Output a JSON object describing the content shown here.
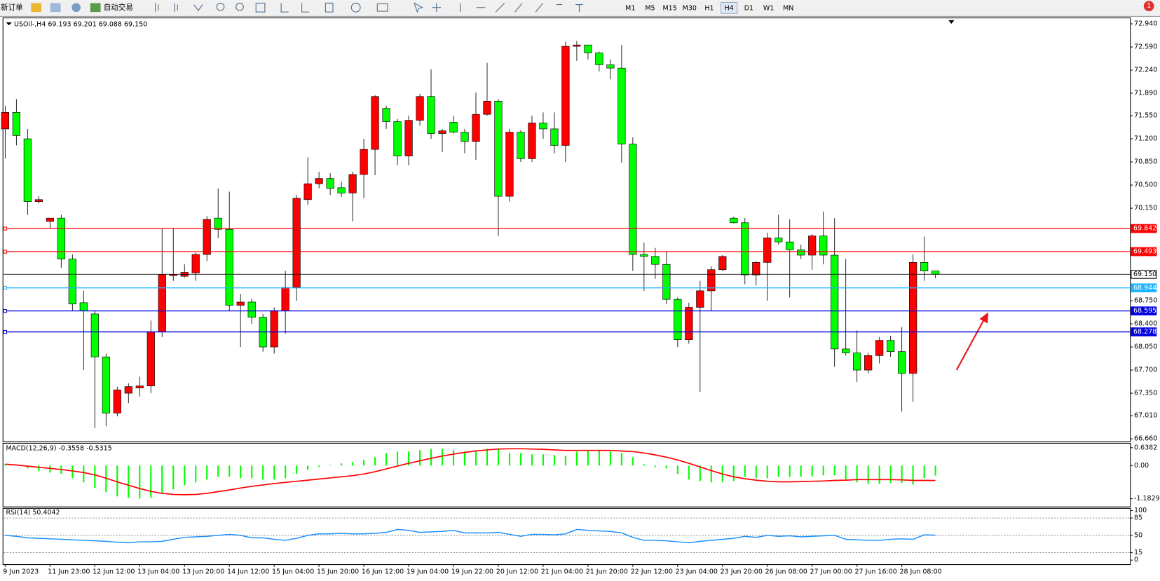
{
  "toolbar": {
    "new_order": "新订单",
    "auto_trading": "自动交易",
    "timeframes": [
      "M1",
      "M5",
      "M15",
      "M30",
      "H1",
      "H4",
      "D1",
      "W1",
      "MN"
    ],
    "selected": "H4",
    "badge": "1"
  },
  "chart_data": [
    {
      "type": "candlestick",
      "title": "USOil-,H4  69.193 69.201 69.088 69.150",
      "categories": [
        "9 Jun 2023",
        null,
        null,
        null,
        "11 Jun 23:00",
        null,
        null,
        null,
        "12 Jun 12:00",
        null,
        null,
        null,
        "13 Jun 04:00",
        null,
        null,
        null,
        "13 Jun 20:00",
        null,
        null,
        null,
        "14 Jun 12:00",
        null,
        null,
        null,
        "15 Jun 04:00",
        null,
        null,
        null,
        "15 Jun 20:00",
        null,
        null,
        null,
        "16 Jun 12:00",
        null,
        null,
        null,
        "19 Jun 04:00",
        null,
        null,
        null,
        "19 Jun 22:00",
        null,
        null,
        null,
        "20 Jun 12:00",
        null,
        null,
        null,
        "21 Jun 04:00",
        null,
        null,
        null,
        "21 Jun 20:00",
        null,
        null,
        null,
        "22 Jun 12:00",
        null,
        null,
        null,
        "23 Jun 04:00",
        null,
        null,
        null,
        "23 Jun 20:00",
        null,
        null,
        null,
        "26 Jun 08:00",
        null,
        null,
        null,
        "27 Jun 00:00",
        null,
        null,
        null,
        "27 Jun 16:00",
        null,
        null,
        null,
        "28 Jun 08:00",
        null,
        null,
        null
      ],
      "open": [
        71.35,
        71.6,
        71.2,
        70.25,
        69.95,
        70.0,
        69.38,
        68.72,
        68.55,
        67.9,
        67.05,
        67.35,
        67.43,
        67.46,
        68.28,
        69.13,
        69.12,
        69.17,
        69.45,
        70.0,
        69.83,
        68.68,
        68.73,
        68.5,
        68.05,
        68.6,
        68.95,
        70.28,
        70.52,
        70.6,
        70.46,
        70.38,
        70.66,
        71.04,
        71.66,
        71.46,
        70.94,
        71.48,
        71.84,
        71.28,
        71.45,
        71.3,
        71.16,
        71.57,
        71.77,
        70.33,
        71.3,
        70.9,
        71.44,
        71.35,
        71.1,
        72.6,
        72.62,
        72.5,
        72.32,
        72.27,
        71.12,
        69.45,
        69.42,
        69.3,
        68.77,
        68.16,
        68.65,
        68.9,
        69.22,
        70.0,
        69.93,
        69.14,
        69.33,
        69.7,
        69.64,
        69.52,
        69.44,
        69.73,
        69.44,
        68.02,
        67.96,
        67.7,
        67.92,
        68.15,
        67.98,
        67.65,
        69.33,
        69.2
      ],
      "high": [
        71.7,
        71.8,
        71.35,
        70.33,
        70.0,
        70.05,
        69.45,
        68.9,
        68.6,
        67.95,
        67.45,
        67.5,
        67.6,
        68.45,
        69.85,
        69.85,
        69.3,
        69.48,
        70.03,
        70.45,
        70.4,
        68.85,
        68.78,
        68.55,
        68.65,
        69.2,
        70.35,
        70.92,
        70.7,
        70.68,
        70.55,
        70.7,
        71.2,
        71.86,
        71.7,
        71.5,
        71.55,
        71.88,
        72.25,
        71.35,
        71.55,
        71.35,
        71.9,
        72.35,
        71.8,
        71.35,
        71.33,
        71.55,
        71.6,
        71.6,
        72.67,
        72.68,
        72.62,
        72.52,
        72.4,
        72.62,
        71.22,
        69.63,
        69.55,
        69.5,
        68.8,
        68.72,
        69.05,
        69.27,
        69.44,
        70.02,
        70.0,
        69.35,
        69.78,
        70.05,
        69.98,
        69.6,
        69.76,
        70.1,
        70.0,
        69.38,
        68.3,
        67.96,
        68.2,
        68.22,
        68.35,
        69.45,
        69.72,
        69.2
      ],
      "low": [
        70.9,
        71.1,
        70.05,
        70.22,
        69.85,
        69.25,
        68.6,
        67.7,
        66.82,
        66.85,
        67.0,
        67.2,
        67.3,
        67.35,
        68.2,
        69.05,
        69.1,
        69.05,
        69.35,
        69.7,
        68.6,
        68.05,
        68.4,
        67.98,
        67.95,
        68.25,
        68.75,
        70.2,
        70.45,
        70.35,
        70.32,
        69.95,
        70.3,
        70.65,
        71.35,
        70.8,
        70.8,
        71.4,
        71.2,
        71.0,
        71.28,
        70.98,
        70.88,
        71.55,
        69.73,
        70.25,
        70.85,
        70.85,
        71.2,
        70.98,
        70.85,
        72.38,
        72.4,
        72.22,
        72.1,
        70.84,
        69.2,
        68.9,
        69.08,
        68.7,
        68.05,
        68.1,
        67.37,
        68.6,
        69.2,
        69.92,
        69.0,
        68.98,
        68.75,
        69.6,
        68.8,
        69.38,
        69.22,
        69.3,
        67.75,
        67.92,
        67.52,
        67.65,
        67.8,
        67.9,
        67.07,
        67.22,
        69.05,
        69.09
      ],
      "close": [
        71.6,
        71.25,
        70.25,
        70.28,
        70.0,
        69.38,
        68.7,
        68.6,
        67.9,
        67.05,
        67.4,
        67.45,
        67.46,
        68.28,
        69.15,
        69.15,
        69.18,
        69.45,
        69.98,
        69.83,
        68.68,
        68.73,
        68.5,
        68.05,
        68.6,
        68.95,
        70.3,
        70.52,
        70.6,
        70.45,
        70.38,
        70.66,
        71.04,
        71.84,
        71.46,
        70.94,
        71.48,
        71.84,
        71.28,
        71.32,
        71.3,
        71.16,
        71.57,
        71.77,
        70.33,
        71.3,
        70.9,
        71.44,
        71.35,
        71.1,
        72.6,
        72.62,
        72.5,
        72.32,
        72.27,
        71.12,
        69.45,
        69.42,
        69.3,
        68.77,
        68.16,
        68.65,
        68.9,
        69.22,
        69.42,
        69.93,
        69.14,
        69.33,
        69.7,
        69.64,
        69.52,
        69.44,
        69.73,
        69.44,
        68.02,
        67.96,
        67.7,
        67.92,
        68.15,
        67.98,
        67.65,
        69.33,
        69.2,
        69.15
      ],
      "up_color": "#ff0000",
      "down_color": "#00ff00",
      "ylim": [
        66.66,
        72.94
      ],
      "yticks": [
        {
          "value": 72.94,
          "label": "72.940"
        },
        {
          "value": 72.59,
          "label": "72.590"
        },
        {
          "value": 72.24,
          "label": "72.240"
        },
        {
          "value": 71.89,
          "label": "71.890"
        },
        {
          "value": 71.55,
          "label": "71.550"
        },
        {
          "value": 71.2,
          "label": "71.200"
        },
        {
          "value": 70.85,
          "label": "70.850"
        },
        {
          "value": 70.5,
          "label": "70.500"
        },
        {
          "value": 70.15,
          "label": "70.150"
        },
        {
          "value": 69.8,
          "label": "69.800"
        },
        {
          "value": 69.45,
          "label": "69.450"
        },
        {
          "value": 68.75,
          "label": "68.750"
        },
        {
          "value": 68.4,
          "label": "68.400"
        },
        {
          "value": 68.05,
          "label": "68.050"
        },
        {
          "value": 67.7,
          "label": "67.700"
        },
        {
          "value": 67.35,
          "label": "67.350"
        },
        {
          "value": 67.01,
          "label": "67.010"
        },
        {
          "value": 66.66,
          "label": "66.660"
        }
      ],
      "price_lines": [
        {
          "value": 69.842,
          "color": "#ff0000"
        },
        {
          "value": 69.493,
          "color": "#ff0000"
        },
        {
          "value": 69.15,
          "label": "69.150",
          "color": "#000000"
        },
        {
          "value": 68.944,
          "color": "#1eb4ff"
        },
        {
          "value": 68.595,
          "color": "#0000e0"
        },
        {
          "value": 68.278,
          "color": "#0000e0"
        }
      ]
    },
    {
      "type": "macd",
      "title": "MACD(12,26,9) -0.3558 -0.5315",
      "histogram": {
        "color": "#00ff00",
        "values": [
          0.05,
          0.0,
          -0.1,
          -0.2,
          -0.25,
          -0.3,
          -0.45,
          -0.6,
          -0.8,
          -0.95,
          -1.1,
          -1.15,
          -1.18,
          -1.15,
          -1.0,
          -0.85,
          -0.7,
          -0.6,
          -0.5,
          -0.4,
          -0.4,
          -0.45,
          -0.45,
          -0.5,
          -0.5,
          -0.45,
          -0.3,
          -0.15,
          -0.05,
          0.02,
          0.08,
          0.12,
          0.2,
          0.3,
          0.45,
          0.5,
          0.5,
          0.55,
          0.6,
          0.6,
          0.55,
          0.5,
          0.55,
          0.6,
          0.6,
          0.45,
          0.45,
          0.4,
          0.4,
          0.38,
          0.35,
          0.5,
          0.55,
          0.55,
          0.5,
          0.45,
          0.3,
          0.05,
          -0.05,
          -0.1,
          -0.3,
          -0.5,
          -0.55,
          -0.6,
          -0.6,
          -0.55,
          -0.4,
          -0.45,
          -0.45,
          -0.4,
          -0.4,
          -0.4,
          -0.38,
          -0.35,
          -0.35,
          -0.5,
          -0.6,
          -0.65,
          -0.65,
          -0.62,
          -0.62,
          -0.68,
          -0.45,
          -0.3558
        ]
      },
      "signal": {
        "color": "#ff0000",
        "values": [
          0.05,
          0.02,
          -0.02,
          -0.06,
          -0.1,
          -0.14,
          -0.19,
          -0.25,
          -0.33,
          -0.45,
          -0.58,
          -0.7,
          -0.82,
          -0.92,
          -0.99,
          -1.03,
          -1.04,
          -1.03,
          -0.99,
          -0.93,
          -0.87,
          -0.8,
          -0.74,
          -0.69,
          -0.64,
          -0.6,
          -0.56,
          -0.52,
          -0.48,
          -0.44,
          -0.4,
          -0.36,
          -0.3,
          -0.22,
          -0.12,
          -0.02,
          0.08,
          0.17,
          0.26,
          0.34,
          0.41,
          0.47,
          0.52,
          0.56,
          0.59,
          0.6,
          0.6,
          0.59,
          0.58,
          0.56,
          0.54,
          0.54,
          0.54,
          0.54,
          0.54,
          0.52,
          0.5,
          0.45,
          0.38,
          0.3,
          0.2,
          0.08,
          -0.05,
          -0.18,
          -0.3,
          -0.4,
          -0.47,
          -0.52,
          -0.56,
          -0.58,
          -0.58,
          -0.57,
          -0.56,
          -0.55,
          -0.53,
          -0.52,
          -0.5,
          -0.5,
          -0.5,
          -0.5,
          -0.51,
          -0.53,
          -0.53,
          -0.5315
        ]
      },
      "ylim": [
        -1.1829,
        0.6382
      ],
      "yticks": [
        0.6382,
        {
          "value": 0,
          "label": "0.00"
        },
        -1.1829
      ]
    },
    {
      "type": "line",
      "title": "RSI(14) 50.4042",
      "color": "#1e90ff",
      "values": [
        50,
        48,
        45,
        44,
        43,
        42,
        41,
        40,
        39,
        38,
        36,
        35,
        37,
        37,
        38,
        42,
        46,
        47,
        48,
        50,
        52,
        50,
        45,
        45,
        42,
        40,
        44,
        50,
        53,
        53,
        54,
        53,
        53,
        54,
        56,
        62,
        60,
        56,
        57,
        58,
        60,
        55,
        55,
        55,
        56,
        52,
        48,
        52,
        52,
        51,
        53,
        62,
        60,
        59,
        58,
        55,
        46,
        40,
        40,
        39,
        37,
        35,
        38,
        40,
        42,
        44,
        48,
        46,
        50,
        48,
        49,
        47,
        48,
        49,
        50,
        42,
        41,
        40,
        40,
        42,
        43,
        42,
        51,
        50.4042
      ],
      "ylim": [
        0,
        100
      ],
      "yticks": [
        100,
        85,
        50,
        15,
        0
      ],
      "grid": "dashed"
    }
  ]
}
